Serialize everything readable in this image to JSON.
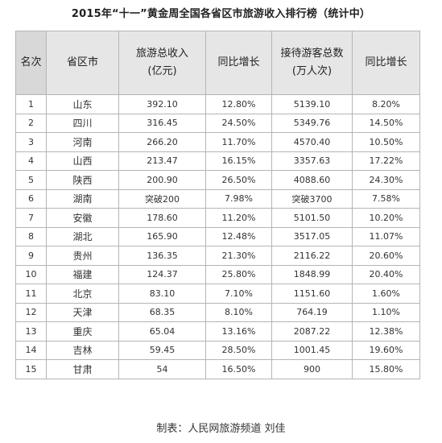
{
  "title": "2015年“十一”黄金周全国各省区市旅游收入排行榜（统计中）",
  "headers": {
    "rank": "名次",
    "province": "省区市",
    "income_line1": "旅游总收入",
    "income_line2": "(亿元)",
    "income_yoy": "同比增长",
    "visitors_line1": "接待游客总数",
    "visitors_line2": "(万人次)",
    "visitors_yoy": "同比增长"
  },
  "rows": [
    {
      "rank": "1",
      "province": "山东",
      "income": "392.10",
      "income_yoy": "12.80%",
      "visitors": "5139.10",
      "visitors_yoy": "8.20%"
    },
    {
      "rank": "2",
      "province": "四川",
      "income": "316.45",
      "income_yoy": "24.50%",
      "visitors": "5349.76",
      "visitors_yoy": "14.50%"
    },
    {
      "rank": "3",
      "province": "河南",
      "income": "266.20",
      "income_yoy": "11.70%",
      "visitors": "4570.40",
      "visitors_yoy": "10.50%"
    },
    {
      "rank": "4",
      "province": "山西",
      "income": "213.47",
      "income_yoy": "16.15%",
      "visitors": "3357.63",
      "visitors_yoy": "17.22%"
    },
    {
      "rank": "5",
      "province": "陕西",
      "income": "200.90",
      "income_yoy": "26.50%",
      "visitors": "4088.60",
      "visitors_yoy": "24.30%"
    },
    {
      "rank": "6",
      "province": "湖南",
      "income": "突破200",
      "income_yoy": "7.98%",
      "visitors": "突破3700",
      "visitors_yoy": "7.58%"
    },
    {
      "rank": "7",
      "province": "安徽",
      "income": "178.60",
      "income_yoy": "11.20%",
      "visitors": "5101.50",
      "visitors_yoy": "10.20%"
    },
    {
      "rank": "8",
      "province": "湖北",
      "income": "165.90",
      "income_yoy": "12.48%",
      "visitors": "3517.05",
      "visitors_yoy": "11.07%"
    },
    {
      "rank": "9",
      "province": "贵州",
      "income": "136.35",
      "income_yoy": "21.30%",
      "visitors": "2116.22",
      "visitors_yoy": "20.60%"
    },
    {
      "rank": "10",
      "province": "福建",
      "income": "124.37",
      "income_yoy": "25.80%",
      "visitors": "1848.99",
      "visitors_yoy": "20.40%"
    },
    {
      "rank": "11",
      "province": "北京",
      "income": "83.10",
      "income_yoy": "7.10%",
      "visitors": "1151.60",
      "visitors_yoy": "1.60%"
    },
    {
      "rank": "12",
      "province": "天津",
      "income": "68.35",
      "income_yoy": "8.10%",
      "visitors": "764.19",
      "visitors_yoy": "1.10%"
    },
    {
      "rank": "13",
      "province": "重庆",
      "income": "65.04",
      "income_yoy": "13.16%",
      "visitors": "2087.22",
      "visitors_yoy": "12.38%"
    },
    {
      "rank": "14",
      "province": "吉林",
      "income": "59.45",
      "income_yoy": "28.50%",
      "visitors": "1001.45",
      "visitors_yoy": "19.60%"
    },
    {
      "rank": "15",
      "province": "甘肃",
      "income": "54",
      "income_yoy": "16.50%",
      "visitors": "900",
      "visitors_yoy": "15.80%"
    }
  ],
  "caption": "制表：人民网旅游频道 刘佳"
}
